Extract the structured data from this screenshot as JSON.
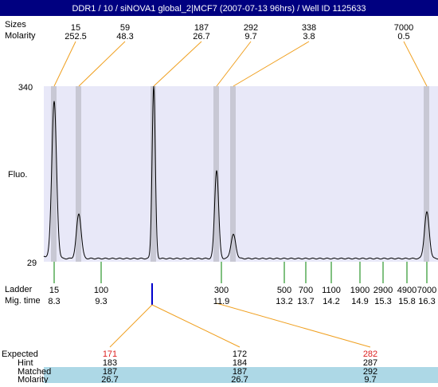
{
  "header": {
    "title": "DDR1 / 10 / siNOVA1 global_2|MCF7 (2007-07-13 96hrs) / Well ID 1125633"
  },
  "peaks": {
    "size_label": "Sizes",
    "molarity_label": "Molarity",
    "sizes": [
      "15",
      "59",
      "187",
      "292",
      "338",
      "7000"
    ],
    "molarity": [
      "252.5",
      "48.3",
      "26.7",
      "9.7",
      "3.8",
      "0.5"
    ]
  },
  "axis": {
    "label": "Fluo.",
    "top": "340",
    "bottom": "29"
  },
  "ladder": {
    "label": "Ladder",
    "time_label": "Mig. time",
    "sizes": [
      "15",
      "100",
      "300",
      "500",
      "700",
      "1100",
      "1900",
      "2900",
      "4900",
      "7000"
    ],
    "times": [
      "8.3",
      "9.3",
      "11.9",
      "13.2",
      "13.7",
      "14.2",
      "14.9",
      "15.3",
      "15.8",
      "16.3"
    ]
  },
  "table": {
    "row_labels": [
      "Expected",
      "Hint",
      "Matched",
      "Molarity"
    ],
    "columns": [
      [
        "171",
        "183",
        "187",
        "26.7"
      ],
      [
        "172",
        "184",
        "187",
        "26.7"
      ],
      [
        "282",
        "287",
        "292",
        "9.7"
      ]
    ]
  }
}
